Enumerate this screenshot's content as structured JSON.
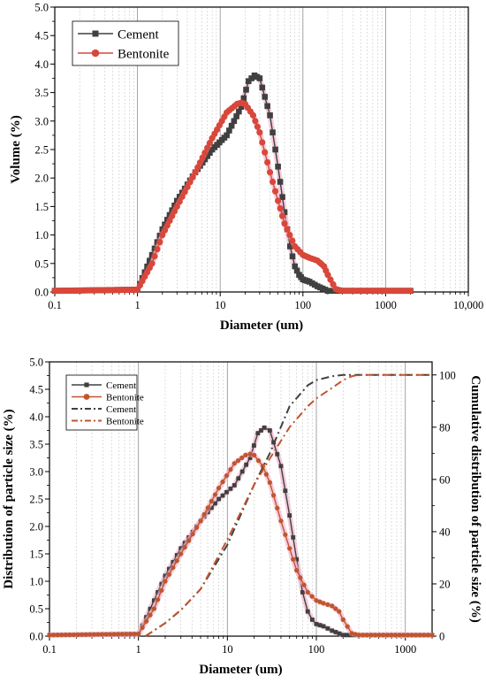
{
  "chart_data": [
    {
      "type": "line",
      "xlabel": "Diameter (um)",
      "ylabel": "Volume (%)",
      "x_scale": "log",
      "xlim": [
        0.1,
        10000
      ],
      "ylim": [
        0,
        5
      ],
      "x_ticks": [
        "0.1",
        "1",
        "10",
        "100",
        "1000",
        "10,000"
      ],
      "y_ticks": [
        "0.0",
        "0.5",
        "1.0",
        "1.5",
        "2.0",
        "2.5",
        "3.0",
        "3.5",
        "4.0",
        "4.5",
        "5.0"
      ],
      "grid": "vertical log gridlines",
      "legend_position": "top-left",
      "series": [
        {
          "name": "Cement",
          "color": "#404040",
          "marker": "square",
          "x": [
            0.1,
            1.0,
            1.5,
            2,
            3,
            5,
            8,
            12,
            18,
            22,
            26,
            30,
            40,
            50,
            60,
            70,
            80,
            90,
            100,
            120,
            150,
            200,
            2000
          ],
          "y": [
            0.02,
            0.04,
            0.65,
            1.1,
            1.6,
            2.1,
            2.5,
            2.75,
            3.25,
            3.7,
            3.8,
            3.75,
            3.1,
            2.2,
            1.4,
            0.8,
            0.45,
            0.3,
            0.22,
            0.18,
            0.1,
            0.02,
            0.02
          ]
        },
        {
          "name": "Bentonite",
          "color": "#d9473a",
          "marker": "circle",
          "x": [
            0.1,
            1.0,
            1.5,
            2,
            3,
            5,
            8,
            12,
            16,
            18,
            20,
            25,
            30,
            40,
            50,
            60,
            80,
            100,
            120,
            150,
            180,
            200,
            250,
            300,
            2000
          ],
          "y": [
            0.02,
            0.04,
            0.5,
            1.0,
            1.5,
            2.1,
            2.7,
            3.15,
            3.3,
            3.32,
            3.3,
            3.1,
            2.8,
            2.1,
            1.6,
            1.2,
            0.8,
            0.65,
            0.6,
            0.55,
            0.45,
            0.3,
            0.05,
            0.02,
            0.02
          ]
        }
      ]
    },
    {
      "type": "line",
      "xlabel": "Diameter (um)",
      "ylabel": "Distribution of particle size (%)",
      "ylabel_right": "Cumulative distribution of particle size (%)",
      "x_scale": "log",
      "xlim": [
        0.1,
        2000
      ],
      "ylim": [
        0,
        5
      ],
      "ylim_right": [
        0,
        105
      ],
      "x_ticks": [
        "0.1",
        "1",
        "10",
        "100",
        "1000"
      ],
      "y_ticks": [
        "0.0",
        "0.5",
        "1.0",
        "1.5",
        "2.0",
        "2.5",
        "3.0",
        "3.5",
        "4.0",
        "4.5",
        "5.0"
      ],
      "y_ticks_right": [
        "0",
        "20",
        "40",
        "60",
        "80",
        "100"
      ],
      "grid": "vertical log gridlines",
      "legend_position": "top-left",
      "series": [
        {
          "name": "Cement",
          "color": "#404040",
          "marker": "square",
          "x": [
            0.1,
            1.0,
            1.5,
            2,
            3,
            5,
            8,
            12,
            18,
            22,
            26,
            30,
            40,
            50,
            60,
            70,
            80,
            90,
            100,
            120,
            150,
            200,
            2000
          ],
          "y": [
            0.02,
            0.04,
            0.65,
            1.1,
            1.6,
            2.1,
            2.5,
            2.75,
            3.25,
            3.7,
            3.8,
            3.75,
            3.1,
            2.2,
            1.4,
            0.8,
            0.45,
            0.3,
            0.22,
            0.18,
            0.1,
            0.02,
            0.02
          ]
        },
        {
          "name": "Bentonite",
          "color": "#c0552e",
          "marker": "circle",
          "x": [
            0.1,
            1.0,
            1.5,
            2,
            3,
            5,
            8,
            12,
            16,
            18,
            20,
            25,
            30,
            40,
            50,
            60,
            80,
            100,
            120,
            150,
            180,
            200,
            250,
            300,
            2000
          ],
          "y": [
            0.02,
            0.04,
            0.5,
            1.0,
            1.5,
            2.1,
            2.7,
            3.15,
            3.3,
            3.32,
            3.3,
            3.1,
            2.8,
            2.1,
            1.6,
            1.2,
            0.8,
            0.65,
            0.6,
            0.55,
            0.45,
            0.3,
            0.05,
            0.02,
            0.02
          ]
        },
        {
          "name": "Cement",
          "color": "#404040",
          "style": "dash-dot",
          "axis": "right",
          "x": [
            1.2,
            2,
            3,
            5,
            10,
            20,
            30,
            50,
            80,
            100,
            150,
            200,
            2000
          ],
          "y": [
            0,
            5,
            10,
            18,
            35,
            58,
            70,
            88,
            96,
            98,
            99.5,
            100,
            100
          ]
        },
        {
          "name": "Bentonite",
          "color": "#c0552e",
          "style": "dash-dot",
          "axis": "right",
          "x": [
            1.2,
            2,
            3,
            5,
            10,
            20,
            30,
            50,
            80,
            100,
            150,
            200,
            250,
            300,
            2000
          ],
          "y": [
            0,
            5,
            10,
            18,
            37,
            58,
            68,
            80,
            88,
            91,
            95,
            98,
            99.5,
            100,
            100
          ]
        }
      ]
    }
  ]
}
